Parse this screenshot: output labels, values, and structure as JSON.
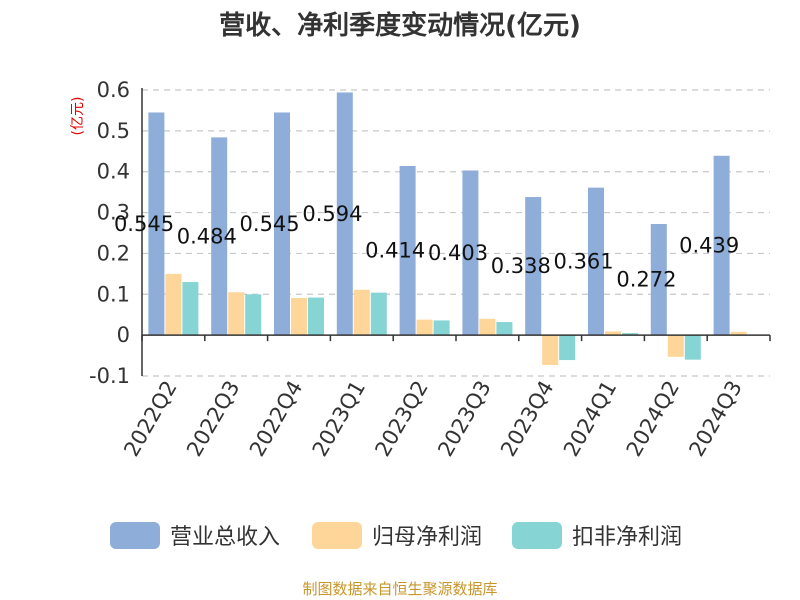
{
  "chart_data": {
    "type": "bar",
    "title": "营收、净利季度变动情况(亿元)",
    "unit_label": "(亿元)",
    "categories": [
      "2022Q2",
      "2022Q3",
      "2022Q4",
      "2023Q1",
      "2023Q2",
      "2023Q3",
      "2023Q4",
      "2024Q1",
      "2024Q2",
      "2024Q3"
    ],
    "series": [
      {
        "name": "营业总收入",
        "color": "#8eadd9",
        "values": [
          0.545,
          0.484,
          0.545,
          0.594,
          0.414,
          0.403,
          0.338,
          0.361,
          0.272,
          0.439
        ]
      },
      {
        "name": "归母净利润",
        "color": "#ffd699",
        "values": [
          0.15,
          0.105,
          0.091,
          0.111,
          0.038,
          0.04,
          -0.073,
          0.009,
          -0.053,
          0.008
        ]
      },
      {
        "name": "扣非净利润",
        "color": "#87d4d4",
        "values": [
          0.13,
          0.1,
          0.092,
          0.104,
          0.036,
          0.032,
          -0.061,
          0.005,
          -0.06,
          0.0
        ]
      }
    ],
    "data_labels": [
      "0.545",
      "0.484",
      "0.545",
      "0.594",
      "0.414",
      "0.403",
      "0.338",
      "0.361",
      "0.272",
      "0.439"
    ],
    "y_ticks": [
      "0.6",
      "0.5",
      "0.4",
      "0.3",
      "0.2",
      "0.1",
      "0",
      "-0.1"
    ],
    "ylim": [
      -0.1,
      0.6
    ],
    "grid": true,
    "legend_position": "bottom"
  },
  "source": "制图数据来自恒生聚源数据库"
}
